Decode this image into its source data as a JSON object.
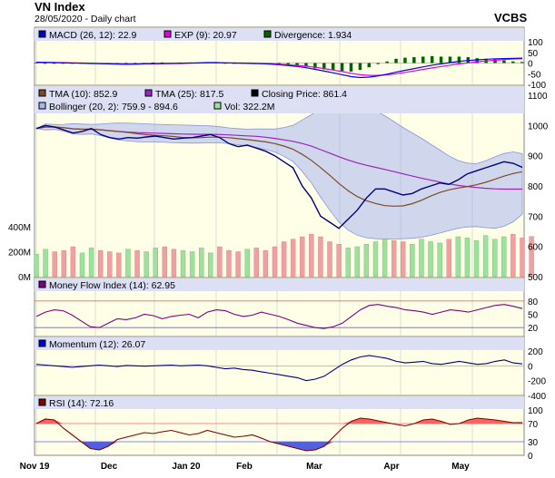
{
  "header": {
    "title": "VN Index",
    "subtitle": "28/05/2020 - Daily chart",
    "brand": "VCBS"
  },
  "colors": {
    "panel_bg": "#ffffe8",
    "legend_bg": "#dde0f4",
    "grid": "#c8c8c8",
    "price_line": "#000080",
    "tma10": "#7b4a2a",
    "tma25": "#a020c0",
    "macd": "#0000ff",
    "exp": "#e000e0",
    "divergence": "#006400",
    "bollinger_fill": "#aab4ee",
    "vol_up": "#9ee09e",
    "vol_down": "#f0a0a0",
    "mfi_line": "#800080",
    "momentum_line": "#000080",
    "rsi_line": "#800000",
    "rsi_over": "#ff6060",
    "rsi_under": "#5060e0",
    "ref_line": "#ff6060",
    "ref_line_low": "#6060ff"
  },
  "chart_data": [
    {
      "type": "line",
      "title": "MACD (26, 12)",
      "series": [
        {
          "name": "MACD (26, 12)",
          "last": "22.9",
          "values": [
            4,
            3,
            2,
            1,
            0,
            -1,
            -2,
            -3,
            -4,
            -5,
            -6,
            -5,
            -4,
            -3,
            -2,
            -2,
            -1,
            0,
            1,
            2,
            2,
            1,
            0,
            -1,
            -2,
            -3,
            -5,
            -8,
            -12,
            -16,
            -22,
            -30,
            -38,
            -46,
            -55,
            -64,
            -68,
            -66,
            -60,
            -52,
            -42,
            -34,
            -26,
            -18,
            -10,
            -4,
            2,
            8,
            12,
            15,
            18,
            20,
            21,
            22,
            22.9
          ]
        },
        {
          "name": "EXP (9)",
          "last": "20.97",
          "values": [
            3,
            3,
            2,
            2,
            1,
            0,
            -1,
            -2,
            -3,
            -4,
            -5,
            -5,
            -4,
            -4,
            -3,
            -2,
            -2,
            -1,
            0,
            1,
            1,
            1,
            0,
            0,
            -1,
            -2,
            -3,
            -5,
            -8,
            -11,
            -15,
            -20,
            -26,
            -33,
            -40,
            -48,
            -55,
            -58,
            -58,
            -55,
            -50,
            -44,
            -37,
            -30,
            -23,
            -16,
            -10,
            -4,
            1,
            6,
            10,
            13,
            16,
            19,
            20.97
          ]
        },
        {
          "name": "Divergence",
          "last": "1.934",
          "values": [
            1,
            0,
            0,
            -1,
            -1,
            -1,
            -1,
            -1,
            -1,
            -1,
            -1,
            0,
            0,
            1,
            1,
            0,
            1,
            1,
            1,
            1,
            1,
            0,
            0,
            -1,
            -1,
            -1,
            -2,
            -3,
            -4,
            -5,
            -7,
            -10,
            -12,
            -13,
            -15,
            -16,
            -13,
            -8,
            -2,
            3,
            8,
            10,
            11,
            12,
            13,
            12,
            12,
            12,
            11,
            9,
            8,
            7,
            5,
            3,
            1.934
          ]
        }
      ],
      "ylim": [
        -100,
        100
      ],
      "yticks": [
        "100",
        "50",
        "0",
        "-50",
        "-100"
      ]
    },
    {
      "type": "line",
      "title": "Price",
      "series": [
        {
          "name": "TMA (10)",
          "last": "852.9"
        },
        {
          "name": "TMA (25)",
          "last": "817.5"
        },
        {
          "name": "Closing Price",
          "last": "861.4",
          "values": [
            990,
            1000,
            995,
            985,
            975,
            980,
            990,
            970,
            960,
            955,
            960,
            958,
            962,
            965,
            960,
            955,
            958,
            960,
            965,
            970,
            960,
            940,
            930,
            935,
            925,
            915,
            900,
            880,
            860,
            800,
            760,
            700,
            680,
            660,
            690,
            720,
            760,
            790,
            790,
            780,
            770,
            775,
            790,
            800,
            810,
            805,
            820,
            840,
            850,
            860,
            870,
            880,
            875,
            861.4
          ]
        },
        {
          "name": "Bollinger (20, 2)",
          "last": "759.9 - 894.6"
        },
        {
          "name": "Vol",
          "last": "322.2M",
          "values": [
            180,
            220,
            200,
            210,
            240,
            190,
            230,
            210,
            200,
            190,
            220,
            210,
            200,
            230,
            240,
            220,
            210,
            200,
            230,
            190,
            240,
            210,
            200,
            220,
            230,
            210,
            240,
            280,
            300,
            320,
            340,
            320,
            280,
            260,
            230,
            240,
            260,
            280,
            300,
            290,
            280,
            260,
            300,
            280,
            270,
            300,
            320,
            310,
            290,
            330,
            300,
            320,
            340,
            310,
            322.2
          ]
        }
      ],
      "ylim": [
        500,
        1100
      ],
      "yticks": [
        "1100",
        "1000",
        "900",
        "800",
        "700",
        "600",
        "500"
      ],
      "volume_ticks": [
        "400M",
        "200M",
        "0M"
      ]
    },
    {
      "type": "line",
      "title": "Money Flow Index (14)",
      "series": [
        {
          "name": "Money Flow Index (14)",
          "last": "62.95",
          "values": [
            45,
            55,
            60,
            58,
            48,
            35,
            22,
            20,
            30,
            40,
            38,
            42,
            50,
            47,
            40,
            45,
            48,
            50,
            42,
            55,
            60,
            58,
            50,
            45,
            48,
            55,
            50,
            45,
            38,
            30,
            25,
            20,
            18,
            22,
            30,
            45,
            60,
            70,
            72,
            68,
            65,
            60,
            58,
            55,
            50,
            55,
            60,
            58,
            55,
            60,
            65,
            70,
            72,
            68,
            62.95
          ]
        }
      ],
      "ylim": [
        0,
        100
      ],
      "yticks": [
        "80",
        "50",
        "20"
      ]
    },
    {
      "type": "line",
      "title": "Momentum (12)",
      "series": [
        {
          "name": "Momentum (12)",
          "last": "26.07",
          "values": [
            20,
            10,
            0,
            -10,
            -20,
            -10,
            0,
            10,
            0,
            -10,
            5,
            0,
            -5,
            0,
            5,
            10,
            0,
            5,
            10,
            0,
            -20,
            -40,
            -30,
            -50,
            -60,
            -80,
            -100,
            -120,
            -140,
            -160,
            -200,
            -180,
            -140,
            -60,
            20,
            80,
            120,
            140,
            120,
            100,
            60,
            40,
            50,
            60,
            30,
            20,
            40,
            60,
            40,
            20,
            30,
            60,
            80,
            40,
            26.07
          ]
        }
      ],
      "ylim": [
        -400,
        200
      ],
      "yticks": [
        "200",
        "0",
        "-200",
        "-400"
      ]
    },
    {
      "type": "area",
      "title": "RSI (14)",
      "series": [
        {
          "name": "RSI (14)",
          "last": "72.16",
          "values": [
            70,
            80,
            78,
            60,
            45,
            30,
            15,
            12,
            20,
            35,
            40,
            45,
            50,
            48,
            52,
            55,
            50,
            45,
            48,
            55,
            50,
            45,
            40,
            42,
            45,
            38,
            30,
            25,
            20,
            15,
            10,
            12,
            20,
            40,
            60,
            75,
            82,
            80,
            76,
            72,
            68,
            65,
            70,
            78,
            80,
            75,
            68,
            70,
            78,
            82,
            80,
            78,
            75,
            72,
            72.16
          ]
        }
      ],
      "ylim": [
        0,
        100
      ],
      "yticks": [
        "100",
        "70",
        "30",
        "0"
      ]
    }
  ],
  "legends": {
    "macd": "MACD (26, 12): 22.9",
    "exp": "EXP (9): 20.97",
    "div": "Divergence: 1.934",
    "tma10": "TMA (10): 852.9",
    "tma25": "TMA (25): 817.5",
    "close": "Closing Price: 861.4",
    "boll": "Bollinger (20, 2): 759.9 - 894.6",
    "vol": "Vol: 322.2M",
    "mfi": "Money Flow Index (14): 62.95",
    "mom": "Momentum (12): 26.07",
    "rsi": "RSI (14): 72.16"
  },
  "x_axis": {
    "labels": [
      "Nov 19",
      "Dec",
      "Jan 20",
      "Feb",
      "Mar",
      "Apr",
      "May"
    ]
  }
}
